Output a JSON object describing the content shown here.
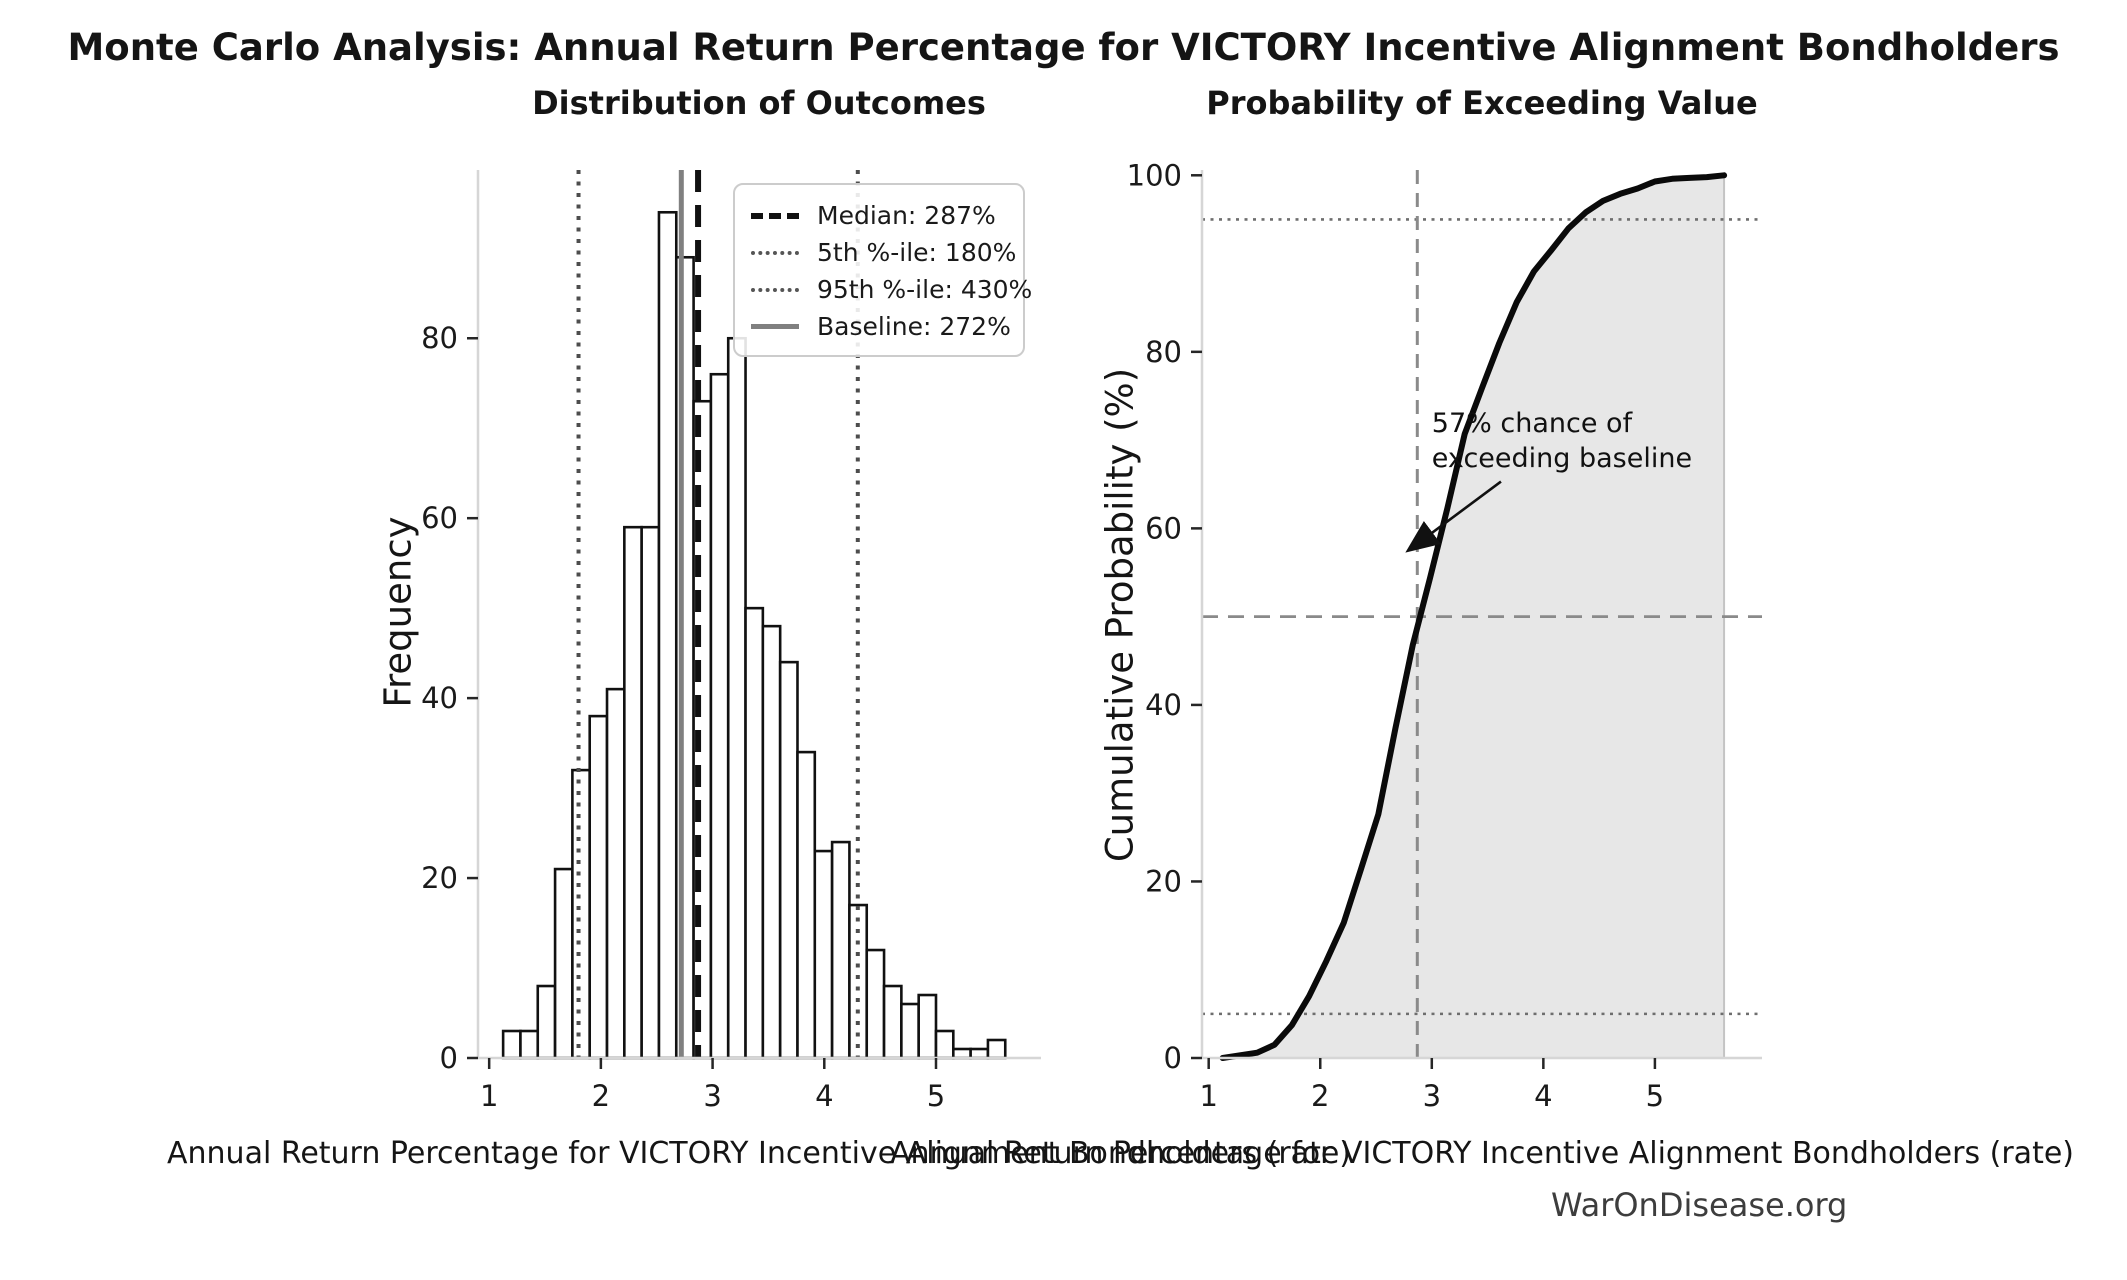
{
  "page": {
    "title": "Monte Carlo Analysis: Annual Return Percentage for VICTORY Incentive Alignment Bondholders",
    "watermark": "WarOnDisease.org"
  },
  "colors": {
    "bar_outline": "#111111",
    "bar_fill": "#ffffff",
    "spine": "#d6d6d6",
    "tick": "#262626",
    "tick_label": "#1a1a1a",
    "median_line": "#111111",
    "percentile_line": "#4d4d4d",
    "baseline_line": "#808080",
    "guide_dotted": "#6e6e6e",
    "guide_dashed": "#8a8a8a",
    "cdf_line": "#0a0a0a",
    "cdf_fill": "#e7e7e7",
    "cdf_fill_edge": "#c4c4c4",
    "watermark": "#3d3d3d"
  },
  "chart_data": [
    {
      "type": "bar",
      "variant": "histogram",
      "title": "Distribution of Outcomes",
      "xlabel": "Annual Return Percentage for VICTORY Incentive Alignment Bondholders (rate)",
      "ylabel": "Frequency",
      "bin_start": 1.125,
      "bin_width": 0.155,
      "frequencies": [
        3,
        3,
        8,
        21,
        32,
        38,
        41,
        59,
        59,
        94,
        89,
        73,
        76,
        80,
        50,
        48,
        44,
        34,
        23,
        24,
        17,
        12,
        8,
        6,
        7,
        3,
        1,
        1,
        2
      ],
      "xticks": [
        1,
        2,
        3,
        4,
        5
      ],
      "yticks": [
        0,
        20,
        40,
        60,
        80
      ],
      "xlim": [
        0.9,
        5.94
      ],
      "ylim": [
        0,
        98.7
      ],
      "grid": false,
      "ref_lines": [
        {
          "name": "median",
          "value": 2.87
        },
        {
          "name": "p5",
          "value": 1.8
        },
        {
          "name": "p95",
          "value": 4.3
        },
        {
          "name": "baseline",
          "value": 2.72
        }
      ],
      "legend": {
        "position": "upper right",
        "entries": [
          {
            "label": "Median: 287%",
            "style": "dashed",
            "color": "#111111"
          },
          {
            "label": "5th %-ile: 180%",
            "style": "dotted",
            "color": "#555555"
          },
          {
            "label": "95th %-ile: 430%",
            "style": "dotted",
            "color": "#555555"
          },
          {
            "label": "Baseline: 272%",
            "style": "solid",
            "color": "#808080"
          }
        ]
      }
    },
    {
      "type": "line",
      "variant": "ecdf",
      "title": "Probability of Exceeding Value",
      "xlabel": "Annual Return Percentage for VICTORY Incentive Alignment Bondholders (rate)",
      "ylabel": "Cumulative Probability (%)",
      "x_start": 1.125,
      "x": [
        1.28,
        1.435,
        1.59,
        1.745,
        1.9,
        2.055,
        2.21,
        2.365,
        2.52,
        2.675,
        2.83,
        2.985,
        3.14,
        3.295,
        3.45,
        3.605,
        3.76,
        3.915,
        4.07,
        4.225,
        4.38,
        4.535,
        4.69,
        4.845,
        5.0,
        5.155,
        5.31,
        5.465,
        5.62
      ],
      "cumulative_percent": [
        0.3,
        0.6,
        1.5,
        3.7,
        7.0,
        11.0,
        15.3,
        21.4,
        27.6,
        37.4,
        46.8,
        54.4,
        62.3,
        70.7,
        75.9,
        81.0,
        85.6,
        89.1,
        91.5,
        94.0,
        95.8,
        97.1,
        97.9,
        98.5,
        99.3,
        99.6,
        99.7,
        99.8,
        100.0
      ],
      "xticks": [
        1,
        2,
        3,
        4,
        5
      ],
      "yticks": [
        0,
        20,
        40,
        60,
        80,
        100
      ],
      "xlim": [
        0.94,
        5.96
      ],
      "ylim": [
        0,
        100.6
      ],
      "grid": false,
      "fill_under": true,
      "guides": {
        "h_dotted": [
          95,
          5
        ],
        "h_dashed": [
          50
        ],
        "v_dashed": [
          2.87
        ]
      },
      "annotation": {
        "lines": [
          "57% chance of",
          "exceeding baseline"
        ],
        "text_xy": [
          3.0,
          73.9
        ],
        "arrow_from": [
          3.62,
          65.3
        ],
        "arrow_to": [
          2.8,
          57.6
        ]
      }
    }
  ]
}
